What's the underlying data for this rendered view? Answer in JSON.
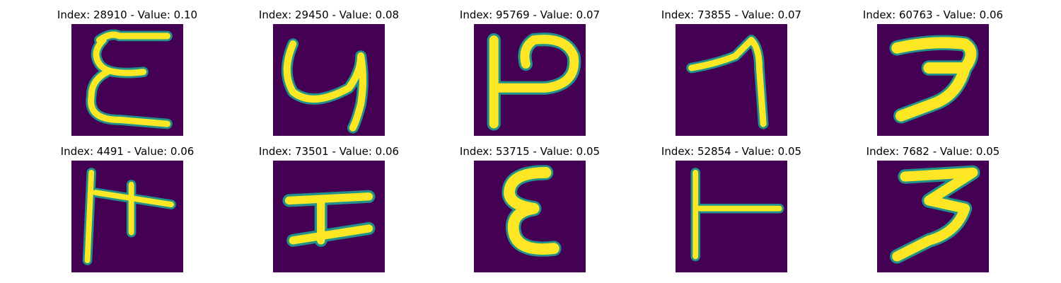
{
  "colors": {
    "background": "#440154",
    "stroke_low": "#21918c",
    "stroke_mid": "#5ec962",
    "stroke_high": "#fde725"
  },
  "panels": [
    {
      "title": "Index: 28910 - Value: 0.10",
      "glyph": "epsilon-like (E) handwritten character"
    },
    {
      "title": "Index: 29450 - Value: 0.08",
      "glyph": "y-like handwritten character"
    },
    {
      "title": "Index: 95769 - Value: 0.07",
      "glyph": "P-like character rotated"
    },
    {
      "title": "Index: 73855 - Value: 0.07",
      "glyph": "7-like handwritten character"
    },
    {
      "title": "Index: 60763 - Value: 0.06",
      "glyph": "reversed-S / 2-like character"
    },
    {
      "title": "Index: 4491 - Value: 0.06",
      "glyph": "F-like character with vertical stroke"
    },
    {
      "title": "Index: 73501 - Value: 0.06",
      "glyph": "H-like rotated character"
    },
    {
      "title": "Index: 53715 - Value: 0.05",
      "glyph": "epsilon-like character"
    },
    {
      "title": "Index: 52854 - Value: 0.05",
      "glyph": "T-like rotated character"
    },
    {
      "title": "Index: 7682 - Value: 0.05",
      "glyph": "3-like handwritten character"
    }
  ]
}
